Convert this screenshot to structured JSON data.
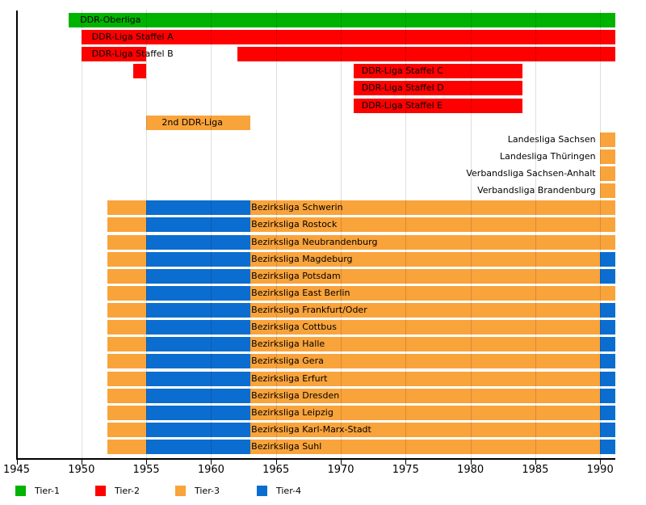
{
  "chart_data": {
    "type": "timeline",
    "title": "",
    "x_axis": {
      "range": [
        1945,
        1991.2
      ],
      "ticks": [
        1945,
        1950,
        1955,
        1960,
        1965,
        1970,
        1975,
        1980,
        1985,
        1990
      ],
      "gridlines": [
        1950,
        1955,
        1960,
        1965,
        1970,
        1975,
        1980,
        1985,
        1990
      ]
    },
    "colors": {
      "tier1": "#00b300",
      "tier2": "#fe0000",
      "tier3": "#f9a33b",
      "tier4": "#0b6dd0"
    },
    "legend": [
      {
        "label": "Tier-1",
        "color_key": "tier1"
      },
      {
        "label": "Tier-2",
        "color_key": "tier2"
      },
      {
        "label": "Tier-3",
        "color_key": "tier3"
      },
      {
        "label": "Tier-4",
        "color_key": "tier4"
      }
    ],
    "rows": [
      {
        "name": "ddr-oberliga",
        "label": "DDR-Oberliga",
        "label_anchor_year": 1949.9,
        "label_align": "left",
        "segments": [
          {
            "from": 1949,
            "to": 1991.2,
            "tier": "tier1"
          }
        ]
      },
      {
        "name": "ddr-liga-staffel-a",
        "label": "DDR-Liga Staffel A",
        "label_anchor_year": 1950.8,
        "label_align": "left",
        "segments": [
          {
            "from": 1950,
            "to": 1991.2,
            "tier": "tier2"
          }
        ]
      },
      {
        "name": "ddr-liga-staffel-b",
        "label": "DDR-Liga Staffel B",
        "label_anchor_year": 1950.8,
        "label_align": "left",
        "segments": [
          {
            "from": 1950,
            "to": 1955,
            "tier": "tier2"
          },
          {
            "from": 1962,
            "to": 1991.2,
            "tier": "tier2"
          }
        ]
      },
      {
        "name": "ddr-liga-staffel-c",
        "label": "DDR-Liga Staffel C",
        "label_anchor_year": 1971.6,
        "label_align": "left",
        "segments": [
          {
            "from": 1954,
            "to": 1955,
            "tier": "tier2"
          },
          {
            "from": 1971,
            "to": 1984,
            "tier": "tier2"
          }
        ]
      },
      {
        "name": "ddr-liga-staffel-d",
        "label": "DDR-Liga Staffel D",
        "label_anchor_year": 1971.6,
        "label_align": "left",
        "segments": [
          {
            "from": 1971,
            "to": 1984,
            "tier": "tier2"
          }
        ]
      },
      {
        "name": "ddr-liga-staffel-e",
        "label": "DDR-Liga Staffel E",
        "label_anchor_year": 1971.6,
        "label_align": "left",
        "segments": [
          {
            "from": 1971,
            "to": 1984,
            "tier": "tier2"
          }
        ]
      },
      {
        "name": "2nd-ddr-liga",
        "label": "2nd DDR-Liga",
        "label_anchor_year": 1956.2,
        "label_align": "left",
        "segments": [
          {
            "from": 1955,
            "to": 1963,
            "tier": "tier3"
          }
        ]
      },
      {
        "name": "landesliga-sachsen",
        "label": "Landesliga Sachsen",
        "label_anchor_year": 1989.65,
        "label_align": "right",
        "segments": [
          {
            "from": 1990,
            "to": 1991.2,
            "tier": "tier3"
          }
        ]
      },
      {
        "name": "landesliga-thueringen",
        "label": "Landesliga Thüringen",
        "label_anchor_year": 1989.65,
        "label_align": "right",
        "segments": [
          {
            "from": 1990,
            "to": 1991.2,
            "tier": "tier3"
          }
        ]
      },
      {
        "name": "verbandsliga-sachsen-anhalt",
        "label": "Verbandsliga Sachsen-Anhalt",
        "label_anchor_year": 1989.65,
        "label_align": "right",
        "segments": [
          {
            "from": 1990,
            "to": 1991.2,
            "tier": "tier3"
          }
        ]
      },
      {
        "name": "verbandsliga-brandenburg",
        "label": "Verbandsliga Brandenburg",
        "label_anchor_year": 1989.65,
        "label_align": "right",
        "segments": [
          {
            "from": 1990,
            "to": 1991.2,
            "tier": "tier3"
          }
        ]
      },
      {
        "name": "bezirksliga-schwerin",
        "label": "Bezirksliga Schwerin",
        "label_anchor_year": 1963.1,
        "label_align": "left",
        "segments": [
          {
            "from": 1952,
            "to": 1955,
            "tier": "tier3"
          },
          {
            "from": 1955,
            "to": 1963,
            "tier": "tier4"
          },
          {
            "from": 1963,
            "to": 1991.2,
            "tier": "tier3"
          }
        ]
      },
      {
        "name": "bezirksliga-rostock",
        "label": "Bezirksliga Rostock",
        "label_anchor_year": 1963.1,
        "label_align": "left",
        "segments": [
          {
            "from": 1952,
            "to": 1955,
            "tier": "tier3"
          },
          {
            "from": 1955,
            "to": 1963,
            "tier": "tier4"
          },
          {
            "from": 1963,
            "to": 1991.2,
            "tier": "tier3"
          }
        ]
      },
      {
        "name": "bezirksliga-neubrandenburg",
        "label": "Bezirksliga Neubrandenburg",
        "label_anchor_year": 1963.1,
        "label_align": "left",
        "segments": [
          {
            "from": 1952,
            "to": 1955,
            "tier": "tier3"
          },
          {
            "from": 1955,
            "to": 1963,
            "tier": "tier4"
          },
          {
            "from": 1963,
            "to": 1991.2,
            "tier": "tier3"
          }
        ]
      },
      {
        "name": "bezirksliga-magdeburg",
        "label": "Bezirksliga Magdeburg",
        "label_anchor_year": 1963.1,
        "label_align": "left",
        "segments": [
          {
            "from": 1952,
            "to": 1955,
            "tier": "tier3"
          },
          {
            "from": 1955,
            "to": 1963,
            "tier": "tier4"
          },
          {
            "from": 1963,
            "to": 1990,
            "tier": "tier3"
          },
          {
            "from": 1990,
            "to": 1991.2,
            "tier": "tier4"
          }
        ]
      },
      {
        "name": "bezirksliga-potsdam",
        "label": "Bezirksliga Potsdam",
        "label_anchor_year": 1963.1,
        "label_align": "left",
        "segments": [
          {
            "from": 1952,
            "to": 1955,
            "tier": "tier3"
          },
          {
            "from": 1955,
            "to": 1963,
            "tier": "tier4"
          },
          {
            "from": 1963,
            "to": 1990,
            "tier": "tier3"
          },
          {
            "from": 1990,
            "to": 1991.2,
            "tier": "tier4"
          }
        ]
      },
      {
        "name": "bezirksliga-east-berlin",
        "label": "Bezirksliga East Berlin",
        "label_anchor_year": 1963.1,
        "label_align": "left",
        "segments": [
          {
            "from": 1952,
            "to": 1955,
            "tier": "tier3"
          },
          {
            "from": 1955,
            "to": 1963,
            "tier": "tier4"
          },
          {
            "from": 1963,
            "to": 1991.2,
            "tier": "tier3"
          }
        ]
      },
      {
        "name": "bezirksliga-frankfurt-oder",
        "label": "Bezirksliga Frankfurt/Oder",
        "label_anchor_year": 1963.1,
        "label_align": "left",
        "segments": [
          {
            "from": 1952,
            "to": 1955,
            "tier": "tier3"
          },
          {
            "from": 1955,
            "to": 1963,
            "tier": "tier4"
          },
          {
            "from": 1963,
            "to": 1990,
            "tier": "tier3"
          },
          {
            "from": 1990,
            "to": 1991.2,
            "tier": "tier4"
          }
        ]
      },
      {
        "name": "bezirksliga-cottbus",
        "label": "Bezirksliga Cottbus",
        "label_anchor_year": 1963.1,
        "label_align": "left",
        "segments": [
          {
            "from": 1952,
            "to": 1955,
            "tier": "tier3"
          },
          {
            "from": 1955,
            "to": 1963,
            "tier": "tier4"
          },
          {
            "from": 1963,
            "to": 1990,
            "tier": "tier3"
          },
          {
            "from": 1990,
            "to": 1991.2,
            "tier": "tier4"
          }
        ]
      },
      {
        "name": "bezirksliga-halle",
        "label": "Bezirksliga Halle",
        "label_anchor_year": 1963.1,
        "label_align": "left",
        "segments": [
          {
            "from": 1952,
            "to": 1955,
            "tier": "tier3"
          },
          {
            "from": 1955,
            "to": 1963,
            "tier": "tier4"
          },
          {
            "from": 1963,
            "to": 1990,
            "tier": "tier3"
          },
          {
            "from": 1990,
            "to": 1991.2,
            "tier": "tier4"
          }
        ]
      },
      {
        "name": "bezirksliga-gera",
        "label": "Bezirksliga Gera",
        "label_anchor_year": 1963.1,
        "label_align": "left",
        "segments": [
          {
            "from": 1952,
            "to": 1955,
            "tier": "tier3"
          },
          {
            "from": 1955,
            "to": 1963,
            "tier": "tier4"
          },
          {
            "from": 1963,
            "to": 1990,
            "tier": "tier3"
          },
          {
            "from": 1990,
            "to": 1991.2,
            "tier": "tier4"
          }
        ]
      },
      {
        "name": "bezirksliga-erfurt",
        "label": "Bezirksliga Erfurt",
        "label_anchor_year": 1963.1,
        "label_align": "left",
        "segments": [
          {
            "from": 1952,
            "to": 1955,
            "tier": "tier3"
          },
          {
            "from": 1955,
            "to": 1963,
            "tier": "tier4"
          },
          {
            "from": 1963,
            "to": 1990,
            "tier": "tier3"
          },
          {
            "from": 1990,
            "to": 1991.2,
            "tier": "tier4"
          }
        ]
      },
      {
        "name": "bezirksliga-dresden",
        "label": "Bezirksliga Dresden",
        "label_anchor_year": 1963.1,
        "label_align": "left",
        "segments": [
          {
            "from": 1952,
            "to": 1955,
            "tier": "tier3"
          },
          {
            "from": 1955,
            "to": 1963,
            "tier": "tier4"
          },
          {
            "from": 1963,
            "to": 1990,
            "tier": "tier3"
          },
          {
            "from": 1990,
            "to": 1991.2,
            "tier": "tier4"
          }
        ]
      },
      {
        "name": "bezirksliga-leipzig",
        "label": "Bezirksliga Leipzig",
        "label_anchor_year": 1963.1,
        "label_align": "left",
        "segments": [
          {
            "from": 1952,
            "to": 1955,
            "tier": "tier3"
          },
          {
            "from": 1955,
            "to": 1963,
            "tier": "tier4"
          },
          {
            "from": 1963,
            "to": 1990,
            "tier": "tier3"
          },
          {
            "from": 1990,
            "to": 1991.2,
            "tier": "tier4"
          }
        ]
      },
      {
        "name": "bezirksliga-karl-marx-stadt",
        "label": "Bezirksliga Karl-Marx-Stadt",
        "label_anchor_year": 1963.1,
        "label_align": "left",
        "segments": [
          {
            "from": 1952,
            "to": 1955,
            "tier": "tier3"
          },
          {
            "from": 1955,
            "to": 1963,
            "tier": "tier4"
          },
          {
            "from": 1963,
            "to": 1990,
            "tier": "tier3"
          },
          {
            "from": 1990,
            "to": 1991.2,
            "tier": "tier4"
          }
        ]
      },
      {
        "name": "bezirksliga-suhl",
        "label": "Bezirksliga Suhl",
        "label_anchor_year": 1963.1,
        "label_align": "left",
        "segments": [
          {
            "from": 1952,
            "to": 1955,
            "tier": "tier3"
          },
          {
            "from": 1955,
            "to": 1963,
            "tier": "tier4"
          },
          {
            "from": 1963,
            "to": 1990,
            "tier": "tier3"
          },
          {
            "from": 1990,
            "to": 1991.2,
            "tier": "tier4"
          }
        ]
      }
    ]
  }
}
